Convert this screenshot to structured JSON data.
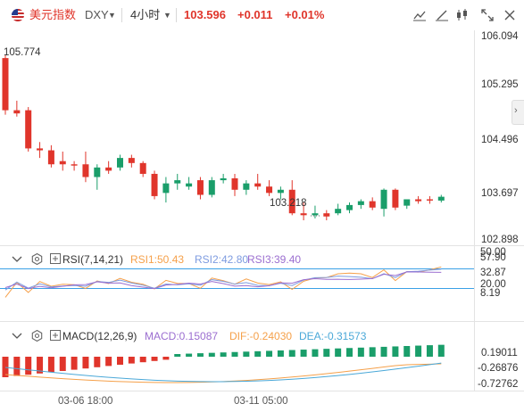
{
  "header": {
    "symbol_name": "美元指数",
    "ticker": "DXY",
    "timeframe": "4小时",
    "price": "103.596",
    "change": "+0.011",
    "change_pct": "+0.01%"
  },
  "price_axis": {
    "labels": [
      "106.094",
      "105.295",
      "104.496",
      "103.697",
      "102.898"
    ]
  },
  "annotations": {
    "high": "105.774",
    "low": "103.218"
  },
  "rsi": {
    "title": "RSI(7,14,21)",
    "rsi1": "RSI1:50.43",
    "rsi2": "RSI2:42.80",
    "rsi3": "RSI3:39.40",
    "axis_labels": [
      "50.00",
      "57.90",
      "32.87",
      "20.00",
      "8.19"
    ]
  },
  "macd": {
    "title": "MACD(12,26,9)",
    "macd": "MACD:0.15087",
    "dif": "DIF:-0.24030",
    "dea": "DEA:-0.31573",
    "axis_labels": [
      "0.19011",
      "-0.26876",
      "-0.72762"
    ]
  },
  "time_axis": {
    "labels": [
      "03-06 18:00",
      "03-11 05:00"
    ]
  },
  "colors": {
    "up": "#1a9e6a",
    "down": "#e0352b",
    "rsi1": "#f5a04a",
    "rsi2": "#7d9be0",
    "rsi3": "#9b6ed0",
    "macd_label": "#1a9e6a",
    "dif": "#f5a04a",
    "dea": "#4aa8d8",
    "ref_line": "#3aa0e6"
  },
  "chart_data": {
    "type": "candlestick",
    "candles": [
      {
        "o": 105.77,
        "h": 105.82,
        "c": 104.95,
        "l": 104.88
      },
      {
        "o": 104.95,
        "h": 105.1,
        "c": 104.9,
        "l": 104.85
      },
      {
        "o": 104.95,
        "h": 105.0,
        "c": 104.35,
        "l": 104.3
      },
      {
        "o": 104.35,
        "h": 104.45,
        "c": 104.32,
        "l": 104.2
      },
      {
        "o": 104.32,
        "h": 104.4,
        "c": 104.1,
        "l": 104.05
      },
      {
        "o": 104.15,
        "h": 104.3,
        "c": 104.1,
        "l": 104.0
      },
      {
        "o": 104.1,
        "h": 104.15,
        "c": 104.08,
        "l": 104.0
      },
      {
        "o": 104.1,
        "h": 104.3,
        "c": 103.9,
        "l": 103.82
      },
      {
        "o": 103.9,
        "h": 104.1,
        "c": 104.05,
        "l": 103.7
      },
      {
        "o": 104.05,
        "h": 104.15,
        "c": 104.0,
        "l": 103.95
      },
      {
        "o": 104.05,
        "h": 104.25,
        "c": 104.2,
        "l": 104.0
      },
      {
        "o": 104.2,
        "h": 104.25,
        "c": 104.12,
        "l": 104.05
      },
      {
        "o": 104.12,
        "h": 104.15,
        "c": 103.95,
        "l": 103.9
      },
      {
        "o": 103.95,
        "h": 104.0,
        "c": 103.6,
        "l": 103.55
      },
      {
        "o": 103.65,
        "h": 103.9,
        "c": 103.8,
        "l": 103.5
      },
      {
        "o": 103.8,
        "h": 103.95,
        "c": 103.85,
        "l": 103.7
      },
      {
        "o": 103.75,
        "h": 103.9,
        "c": 103.8,
        "l": 103.7
      },
      {
        "o": 103.85,
        "h": 103.9,
        "c": 103.62,
        "l": 103.55
      },
      {
        "o": 103.62,
        "h": 103.9,
        "c": 103.85,
        "l": 103.58
      },
      {
        "o": 103.85,
        "h": 103.95,
        "c": 103.88,
        "l": 103.8
      },
      {
        "o": 103.88,
        "h": 103.95,
        "c": 103.7,
        "l": 103.6
      },
      {
        "o": 103.7,
        "h": 103.85,
        "c": 103.8,
        "l": 103.62
      },
      {
        "o": 103.8,
        "h": 103.95,
        "c": 103.75,
        "l": 103.7
      },
      {
        "o": 103.75,
        "h": 103.85,
        "c": 103.65,
        "l": 103.6
      },
      {
        "o": 103.65,
        "h": 103.75,
        "c": 103.7,
        "l": 103.55
      },
      {
        "o": 103.7,
        "h": 103.85,
        "c": 103.33,
        "l": 103.3
      },
      {
        "o": 103.33,
        "h": 103.5,
        "c": 103.3,
        "l": 103.22
      },
      {
        "o": 103.3,
        "h": 103.45,
        "c": 103.33,
        "l": 103.25
      },
      {
        "o": 103.33,
        "h": 103.38,
        "c": 103.28,
        "l": 103.22
      },
      {
        "o": 103.33,
        "h": 103.48,
        "c": 103.4,
        "l": 103.3
      },
      {
        "o": 103.38,
        "h": 103.5,
        "c": 103.46,
        "l": 103.33
      },
      {
        "o": 103.46,
        "h": 103.55,
        "c": 103.52,
        "l": 103.4
      },
      {
        "o": 103.52,
        "h": 103.58,
        "c": 103.42,
        "l": 103.38
      },
      {
        "o": 103.4,
        "h": 103.72,
        "c": 103.7,
        "l": 103.28
      },
      {
        "o": 103.7,
        "h": 103.72,
        "c": 103.42,
        "l": 103.38
      },
      {
        "o": 103.45,
        "h": 103.55,
        "c": 103.55,
        "l": 103.4
      },
      {
        "o": 103.55,
        "h": 103.6,
        "c": 103.52,
        "l": 103.48
      },
      {
        "o": 103.55,
        "h": 103.6,
        "c": 103.53,
        "l": 103.48
      },
      {
        "o": 103.53,
        "h": 103.62,
        "c": 103.59,
        "l": 103.5
      }
    ]
  }
}
